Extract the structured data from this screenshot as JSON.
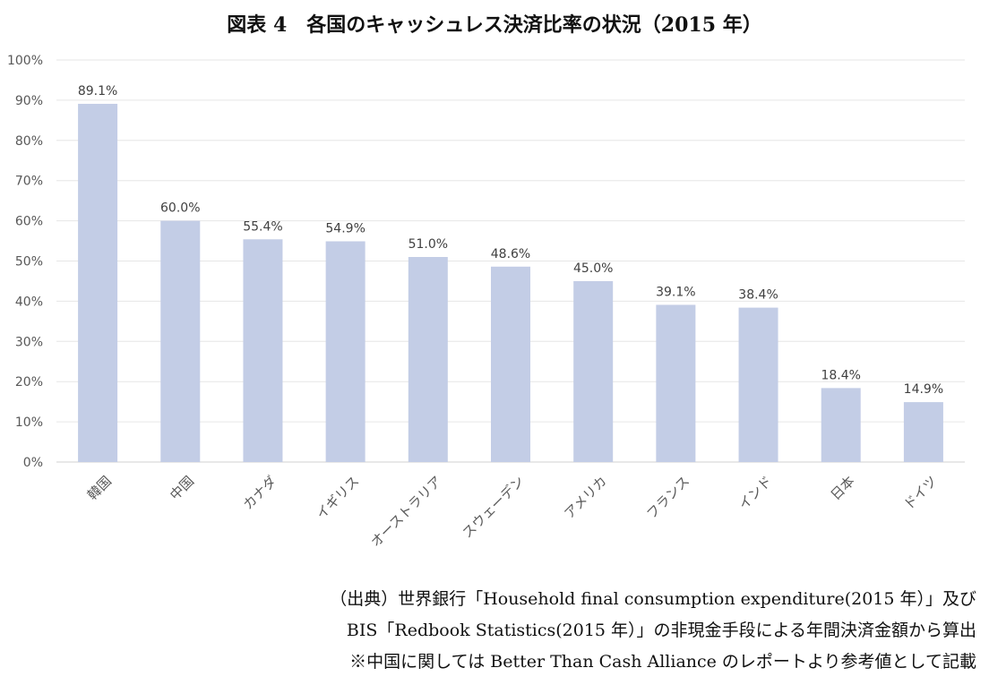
{
  "chart_data": {
    "type": "bar",
    "title": "図表 4　各国のキャッシュレス決済比率の状況（2015 年）",
    "categories": [
      "韓国",
      "中国",
      "カナダ",
      "イギリス",
      "オーストラリア",
      "スウェーデン",
      "アメリカ",
      "フランス",
      "インド",
      "日本",
      "ドイツ"
    ],
    "values": [
      89.1,
      60.0,
      55.4,
      54.9,
      51.0,
      48.6,
      45.0,
      39.1,
      38.4,
      18.4,
      14.9
    ],
    "data_labels": [
      "89.1%",
      "60.0%",
      "55.4%",
      "54.9%",
      "51.0%",
      "48.6%",
      "45.0%",
      "39.1%",
      "38.4%",
      "18.4%",
      "14.9%"
    ],
    "yticks": [
      "0%",
      "10%",
      "20%",
      "30%",
      "40%",
      "50%",
      "60%",
      "70%",
      "80%",
      "90%",
      "100%"
    ],
    "ylim": [
      0,
      100
    ],
    "grid": true,
    "colors": {
      "bar": "#c3cde6",
      "grid": "#e6e6e6"
    }
  },
  "notes": [
    "（出典）世界銀行「Household final consumption expenditure(2015 年）」及び",
    "BIS「Redbook Statistics(2015 年）」の非現金手段による年間決済金額から算出",
    "※中国に関しては Better Than Cash Alliance のレポートより参考値として記載"
  ]
}
